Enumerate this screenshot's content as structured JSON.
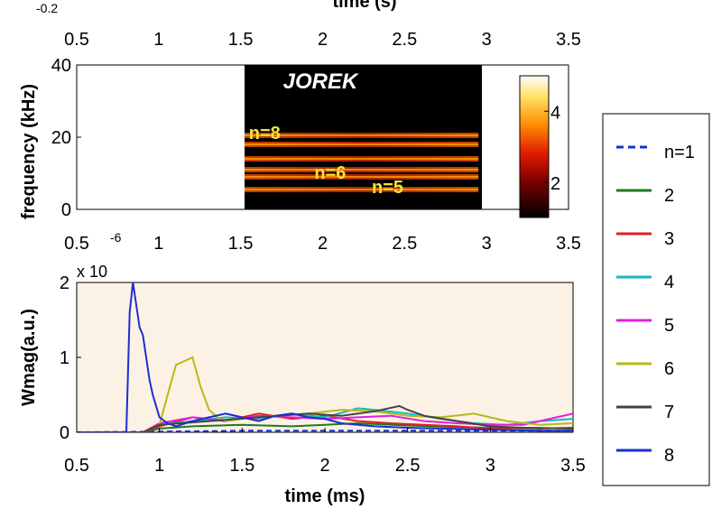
{
  "chart_data": [
    {
      "type": "heatmap",
      "title": "JOREK",
      "xlabel": "time (s)",
      "x_scale_label": "-0.2",
      "ylabel": "frequency (kHz)",
      "xlim": [
        0.5,
        3.5
      ],
      "ylim": [
        0,
        40
      ],
      "xticks": [
        "0.5",
        "1",
        "1.5",
        "2",
        "2.5",
        "3",
        "3.5"
      ],
      "yticks": [
        "0",
        "20",
        "40"
      ],
      "data_range_x": [
        1.5,
        2.95
      ],
      "bands": [
        {
          "label": "n=8",
          "freq": 20.5
        },
        {
          "freq": 18.0
        },
        {
          "freq": 14.0
        },
        {
          "label": "n=6",
          "freq": 11.0
        },
        {
          "freq": 9.0
        },
        {
          "label": "n=5",
          "freq": 5.5
        }
      ],
      "band_labels": [
        {
          "text": "n=8",
          "x": 1.55,
          "freq": 21
        },
        {
          "text": "n=6",
          "x": 1.95,
          "freq": 10
        },
        {
          "text": "n=5",
          "x": 2.3,
          "freq": 6
        }
      ],
      "colorbar": {
        "ticks": [
          "2",
          "4"
        ],
        "range": [
          1,
          5
        ],
        "colormap": "hot"
      }
    },
    {
      "type": "line",
      "xlabel": "time (ms)",
      "ylabel": "Wmag(a.u.)",
      "y_scale_label": "x 10",
      "y_scale_exponent": "-6",
      "xlim": [
        0.5,
        3.5
      ],
      "ylim": [
        0,
        2
      ],
      "xticks": [
        "0.5",
        "1",
        "1.5",
        "2",
        "2.5",
        "3",
        "3.5"
      ],
      "yticks": [
        "0",
        "1",
        "2"
      ],
      "background": "#fcf1e5",
      "series": [
        {
          "name": "n=1",
          "color": "#1a2fd0",
          "dashed": true,
          "x": [
            0.5,
            1.0,
            1.5,
            2.0,
            2.5,
            3.0,
            3.5
          ],
          "y": [
            0.0,
            0.01,
            0.02,
            0.02,
            0.02,
            0.02,
            0.02
          ]
        },
        {
          "name": "2",
          "color": "#1f7a1f",
          "x": [
            0.5,
            0.9,
            1.0,
            1.2,
            1.5,
            1.8,
            2.0,
            2.2,
            2.5,
            2.8,
            3.0,
            3.3,
            3.5
          ],
          "y": [
            0.0,
            0.0,
            0.05,
            0.08,
            0.1,
            0.08,
            0.1,
            0.12,
            0.09,
            0.07,
            0.06,
            0.05,
            0.06
          ]
        },
        {
          "name": "3",
          "color": "#e02020",
          "x": [
            0.5,
            0.9,
            1.0,
            1.2,
            1.4,
            1.6,
            1.8,
            2.0,
            2.2,
            2.4,
            2.6,
            2.8,
            3.0,
            3.2,
            3.5
          ],
          "y": [
            0.0,
            0.0,
            0.08,
            0.2,
            0.15,
            0.25,
            0.18,
            0.22,
            0.15,
            0.12,
            0.1,
            0.08,
            0.05,
            0.06,
            0.05
          ]
        },
        {
          "name": "4",
          "color": "#18b8c0",
          "x": [
            0.5,
            0.9,
            1.0,
            1.2,
            1.4,
            1.6,
            1.8,
            2.0,
            2.2,
            2.3,
            2.5,
            2.7,
            2.9,
            3.1,
            3.3,
            3.5
          ],
          "y": [
            0.0,
            0.0,
            0.1,
            0.15,
            0.2,
            0.18,
            0.25,
            0.2,
            0.32,
            0.3,
            0.25,
            0.18,
            0.12,
            0.1,
            0.15,
            0.18
          ]
        },
        {
          "name": "5",
          "color": "#e020e0",
          "x": [
            0.5,
            0.9,
            1.0,
            1.2,
            1.4,
            1.6,
            1.8,
            2.0,
            2.2,
            2.4,
            2.6,
            2.8,
            3.0,
            3.2,
            3.4,
            3.5
          ],
          "y": [
            0.0,
            0.0,
            0.12,
            0.2,
            0.15,
            0.22,
            0.2,
            0.18,
            0.2,
            0.22,
            0.15,
            0.12,
            0.1,
            0.1,
            0.2,
            0.25
          ]
        },
        {
          "name": "6",
          "color": "#b8b818",
          "x": [
            0.5,
            0.9,
            1.0,
            1.05,
            1.1,
            1.15,
            1.2,
            1.25,
            1.3,
            1.35,
            1.4,
            1.5,
            1.7,
            1.9,
            2.1,
            2.3,
            2.5,
            2.7,
            2.9,
            3.1,
            3.3,
            3.5
          ],
          "y": [
            0.0,
            0.0,
            0.1,
            0.5,
            0.9,
            0.95,
            1.0,
            0.6,
            0.3,
            0.2,
            0.15,
            0.18,
            0.22,
            0.25,
            0.3,
            0.28,
            0.22,
            0.2,
            0.25,
            0.15,
            0.1,
            0.12
          ]
        },
        {
          "name": "7",
          "color": "#444444",
          "x": [
            0.5,
            0.9,
            1.0,
            1.3,
            1.6,
            1.9,
            2.1,
            2.3,
            2.45,
            2.5,
            2.6,
            2.8,
            3.0,
            3.2,
            3.5
          ],
          "y": [
            0.0,
            0.0,
            0.1,
            0.15,
            0.2,
            0.25,
            0.22,
            0.28,
            0.35,
            0.3,
            0.22,
            0.15,
            0.08,
            0.06,
            0.05
          ]
        },
        {
          "name": "8",
          "color": "#1a2fd0",
          "x": [
            0.5,
            0.8,
            0.82,
            0.84,
            0.86,
            0.88,
            0.9,
            0.92,
            0.94,
            0.96,
            0.98,
            1.0,
            1.05,
            1.1,
            1.2,
            1.3,
            1.4,
            1.5,
            1.6,
            1.7,
            1.8,
            1.9,
            2.0,
            2.1,
            2.2,
            2.3,
            2.5,
            2.7,
            2.9,
            3.1,
            3.3,
            3.5
          ],
          "y": [
            0.0,
            0.0,
            1.6,
            2.0,
            1.7,
            1.4,
            1.3,
            1.0,
            0.7,
            0.5,
            0.35,
            0.2,
            0.12,
            0.08,
            0.15,
            0.2,
            0.25,
            0.2,
            0.15,
            0.22,
            0.25,
            0.2,
            0.18,
            0.12,
            0.1,
            0.08,
            0.06,
            0.05,
            0.04,
            0.03,
            0.02,
            0.02
          ]
        }
      ]
    }
  ]
}
